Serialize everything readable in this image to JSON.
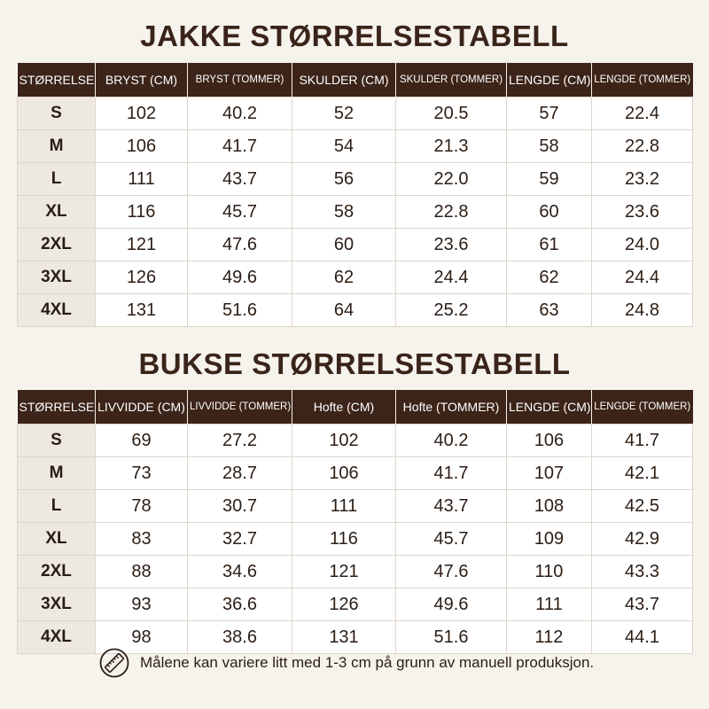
{
  "jacket": {
    "title": "JAKKE STØRRELSESTABELL",
    "headers": [
      "STØRRELSE",
      "BRYST (CM)",
      "BRYST (TOMMER)",
      "SKULDER (CM)",
      "SKULDER (TOMMER)",
      "LENGDE (CM)",
      "LENGDE (TOMMER)"
    ],
    "rows": [
      [
        "S",
        "102",
        "40.2",
        "52",
        "20.5",
        "57",
        "22.4"
      ],
      [
        "M",
        "106",
        "41.7",
        "54",
        "21.3",
        "58",
        "22.8"
      ],
      [
        "L",
        "111",
        "43.7",
        "56",
        "22.0",
        "59",
        "23.2"
      ],
      [
        "XL",
        "116",
        "45.7",
        "58",
        "22.8",
        "60",
        "23.6"
      ],
      [
        "2XL",
        "121",
        "47.6",
        "60",
        "23.6",
        "61",
        "24.0"
      ],
      [
        "3XL",
        "126",
        "49.6",
        "62",
        "24.4",
        "62",
        "24.4"
      ],
      [
        "4XL",
        "131",
        "51.6",
        "64",
        "25.2",
        "63",
        "24.8"
      ]
    ]
  },
  "pants": {
    "title": "BUKSE STØRRELSESTABELL",
    "headers": [
      "STØRRELSE",
      "LIVVIDDE (CM)",
      "LIVVIDDE (TOMMER)",
      "Hofte (CM)",
      "Hofte (TOMMER)",
      "LENGDE (CM)",
      "LENGDE (TOMMER)"
    ],
    "rows": [
      [
        "S",
        "69",
        "27.2",
        "102",
        "40.2",
        "106",
        "41.7"
      ],
      [
        "M",
        "73",
        "28.7",
        "106",
        "41.7",
        "107",
        "42.1"
      ],
      [
        "L",
        "78",
        "30.7",
        "111",
        "43.7",
        "108",
        "42.5"
      ],
      [
        "XL",
        "83",
        "32.7",
        "116",
        "45.7",
        "109",
        "42.9"
      ],
      [
        "2XL",
        "88",
        "34.6",
        "121",
        "47.6",
        "110",
        "43.3"
      ],
      [
        "3XL",
        "93",
        "36.6",
        "126",
        "49.6",
        "111",
        "43.7"
      ],
      [
        "4XL",
        "98",
        "38.6",
        "131",
        "51.6",
        "112",
        "44.1"
      ]
    ]
  },
  "footnote": {
    "icon": "ruler-icon",
    "text": "Målene kan variere litt med 1-3 cm på grunn av manuell produksjon."
  },
  "colors": {
    "header_bg": "#3c2418",
    "title_color": "#3a2419",
    "page_bg": "#f6f2ec",
    "size_col_bg": "#ede8e1"
  }
}
